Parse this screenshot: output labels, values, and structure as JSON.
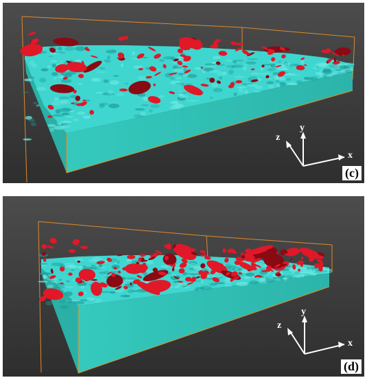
{
  "panels": [
    {
      "id": "c",
      "label": "(c)",
      "red_blob_count": 110,
      "seed": 7
    },
    {
      "id": "d",
      "label": "(d)",
      "red_blob_count": 170,
      "seed": 23
    }
  ],
  "axes": {
    "x": "x",
    "y": "y",
    "z": "z"
  },
  "colors": {
    "background_top": "#4a4a4a",
    "background_bottom": "#303030",
    "surface": "#3fd4d0",
    "surface_dark": "#1f9c9a",
    "box_front": "#2fc2b8",
    "box_edge": "#e08a2a",
    "blobs": "#e01828",
    "blobs_dark": "#8a0a14",
    "triad": "#ffffff"
  }
}
